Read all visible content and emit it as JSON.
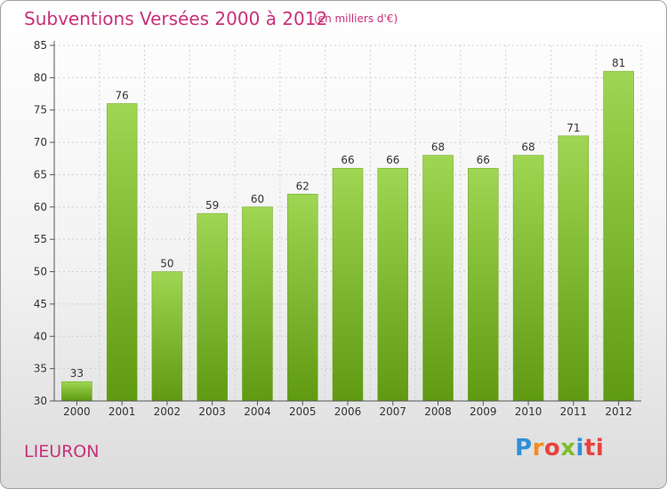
{
  "title": "Subventions Versées 2000 à 2012",
  "subtitle": "(en milliers d'€)",
  "commune": "LIEURON",
  "logo": "Proxiti",
  "colors": {
    "title": "#c8317a",
    "bar_top": "#9fd653",
    "bar_bottom": "#5f9a12"
  },
  "chart_data": {
    "type": "bar",
    "title": "Subventions Versées 2000 à 2012",
    "xlabel": "",
    "ylabel": "",
    "categories": [
      "2000",
      "2001",
      "2002",
      "2003",
      "2004",
      "2005",
      "2006",
      "2007",
      "2008",
      "2009",
      "2010",
      "2011",
      "2012"
    ],
    "values": [
      33,
      76,
      50,
      59,
      60,
      62,
      66,
      66,
      68,
      66,
      68,
      71,
      81
    ],
    "ylim": [
      30,
      85
    ],
    "yticks": [
      30,
      35,
      40,
      45,
      50,
      55,
      60,
      65,
      70,
      75,
      80,
      85
    ],
    "grid": true,
    "legend": "none"
  }
}
